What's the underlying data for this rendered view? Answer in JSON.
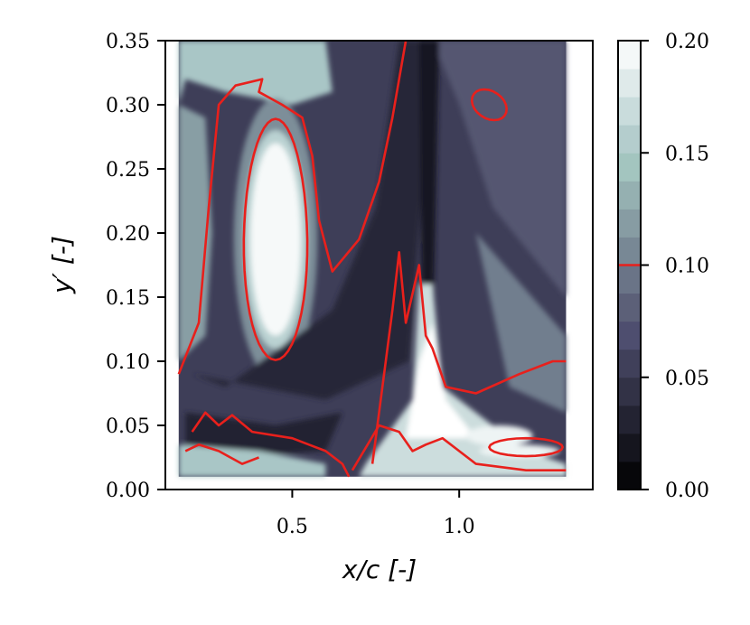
{
  "chart_data": {
    "type": "heatmap",
    "subtype": "filled-contour",
    "title": "",
    "xlabel": "x/c [-]",
    "ylabel": "y′ [-]",
    "xlim": [
      0.12,
      1.4
    ],
    "ylim": [
      0.0,
      0.35
    ],
    "xticks": [
      0.5,
      1.0
    ],
    "xtick_labels": [
      "0.5",
      "1.0"
    ],
    "yticks": [
      0.0,
      0.05,
      0.1,
      0.15,
      0.2,
      0.25,
      0.3,
      0.35
    ],
    "ytick_labels": [
      "0.00",
      "0.05",
      "0.10",
      "0.15",
      "0.20",
      "0.25",
      "0.30",
      "0.35"
    ],
    "data_extent": {
      "x": [
        0.16,
        1.32
      ],
      "y": [
        0.01,
        0.35
      ]
    },
    "grid": false,
    "colormap": "bone",
    "colorbar": {
      "range": [
        0.0,
        0.2
      ],
      "levels": 16,
      "ticks": [
        0.0,
        0.05,
        0.1,
        0.15,
        0.2
      ],
      "tick_labels": [
        "0.00",
        "0.05",
        "0.10",
        "0.15",
        "0.20"
      ],
      "highlight_level": 0.1,
      "highlight_color": "#e8201c"
    },
    "contour_line": {
      "level": 0.1,
      "color": "#e8201c"
    },
    "features": [
      {
        "kind": "high-value-region",
        "center": [
          0.45,
          0.195
        ],
        "value": 0.2
      },
      {
        "kind": "high-value-region",
        "center": [
          0.9,
          0.07
        ],
        "value": 0.2
      },
      {
        "kind": "low-value-band",
        "value": 0.03
      },
      {
        "kind": "closed-contour-island",
        "center": [
          1.1,
          0.3
        ]
      }
    ]
  }
}
